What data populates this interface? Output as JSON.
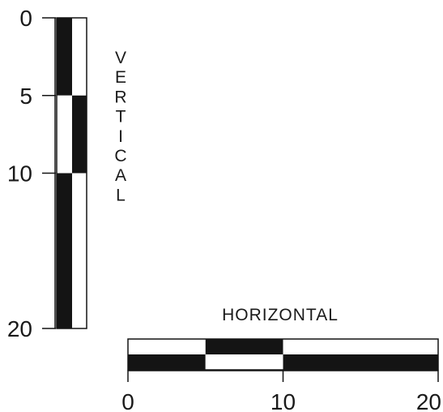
{
  "vertical_scale": {
    "label": "VERTICAL",
    "ticks": [
      {
        "value": 0,
        "label": "0"
      },
      {
        "value": 5,
        "label": "5"
      },
      {
        "value": 10,
        "label": "10"
      },
      {
        "value": 20,
        "label": "20"
      }
    ],
    "range": [
      0,
      20
    ],
    "segments": [
      {
        "from": 0,
        "to": 5,
        "left": "black",
        "right": "white"
      },
      {
        "from": 5,
        "to": 10,
        "left": "white",
        "right": "black"
      },
      {
        "from": 10,
        "to": 20,
        "left": "black",
        "right": "white"
      }
    ]
  },
  "horizontal_scale": {
    "label": "HORIZONTAL",
    "ticks": [
      {
        "value": 0,
        "label": "0"
      },
      {
        "value": 10,
        "label": "10"
      },
      {
        "value": 20,
        "label": "20"
      }
    ],
    "range": [
      0,
      20
    ],
    "segments": [
      {
        "from": 0,
        "to": 5,
        "top": "white",
        "bottom": "black"
      },
      {
        "from": 5,
        "to": 10,
        "top": "black",
        "bottom": "white"
      },
      {
        "from": 10,
        "to": 20,
        "top": "white",
        "bottom": "black"
      }
    ]
  },
  "colors": {
    "ink": "#141414",
    "paper": "#ffffff"
  }
}
